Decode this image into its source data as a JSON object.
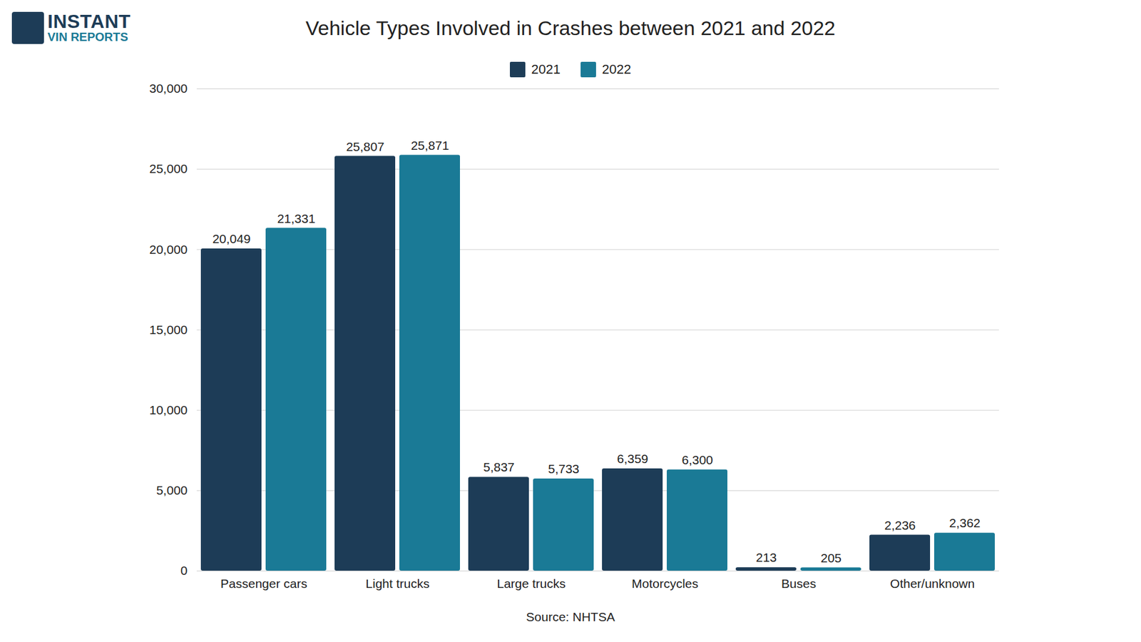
{
  "chart_data": {
    "type": "bar",
    "title": "Vehicle Types Involved in Crashes between 2021 and 2022",
    "caption": "Source: NHTSA",
    "annotations": [
      "INSTANT",
      "VIN REPORTS"
    ],
    "categories": [
      "Passenger cars",
      "Light trucks",
      "Large trucks",
      "Motorcycles",
      "Buses",
      "Other/unknown"
    ],
    "series": [
      {
        "name": "2021",
        "color": "#1d3c57",
        "values": [
          20049,
          25807,
          5837,
          6359,
          213,
          2236
        ],
        "value_labels": [
          "20,049",
          "25,807",
          "5,837",
          "6,359",
          "213",
          "2,236"
        ]
      },
      {
        "name": "2022",
        "color": "#1a7a96",
        "values": [
          21331,
          25871,
          5733,
          6300,
          205,
          2362
        ],
        "value_labels": [
          "21,331",
          "25,871",
          "5,733",
          "6,300",
          "205",
          "2,362"
        ]
      }
    ],
    "ylim": [
      0,
      30000
    ],
    "yticks": [
      0,
      {
        "value": 5000,
        "label": "5,000"
      },
      {
        "value": 10000,
        "label": "10,000"
      },
      {
        "value": 15000,
        "label": "15,000"
      },
      {
        "value": 20000,
        "label": "20,000"
      },
      {
        "value": 25000,
        "label": "25,000"
      },
      {
        "value": 30000,
        "label": "30,000"
      }
    ],
    "grid": true,
    "legend": "top",
    "data_labels": true
  }
}
